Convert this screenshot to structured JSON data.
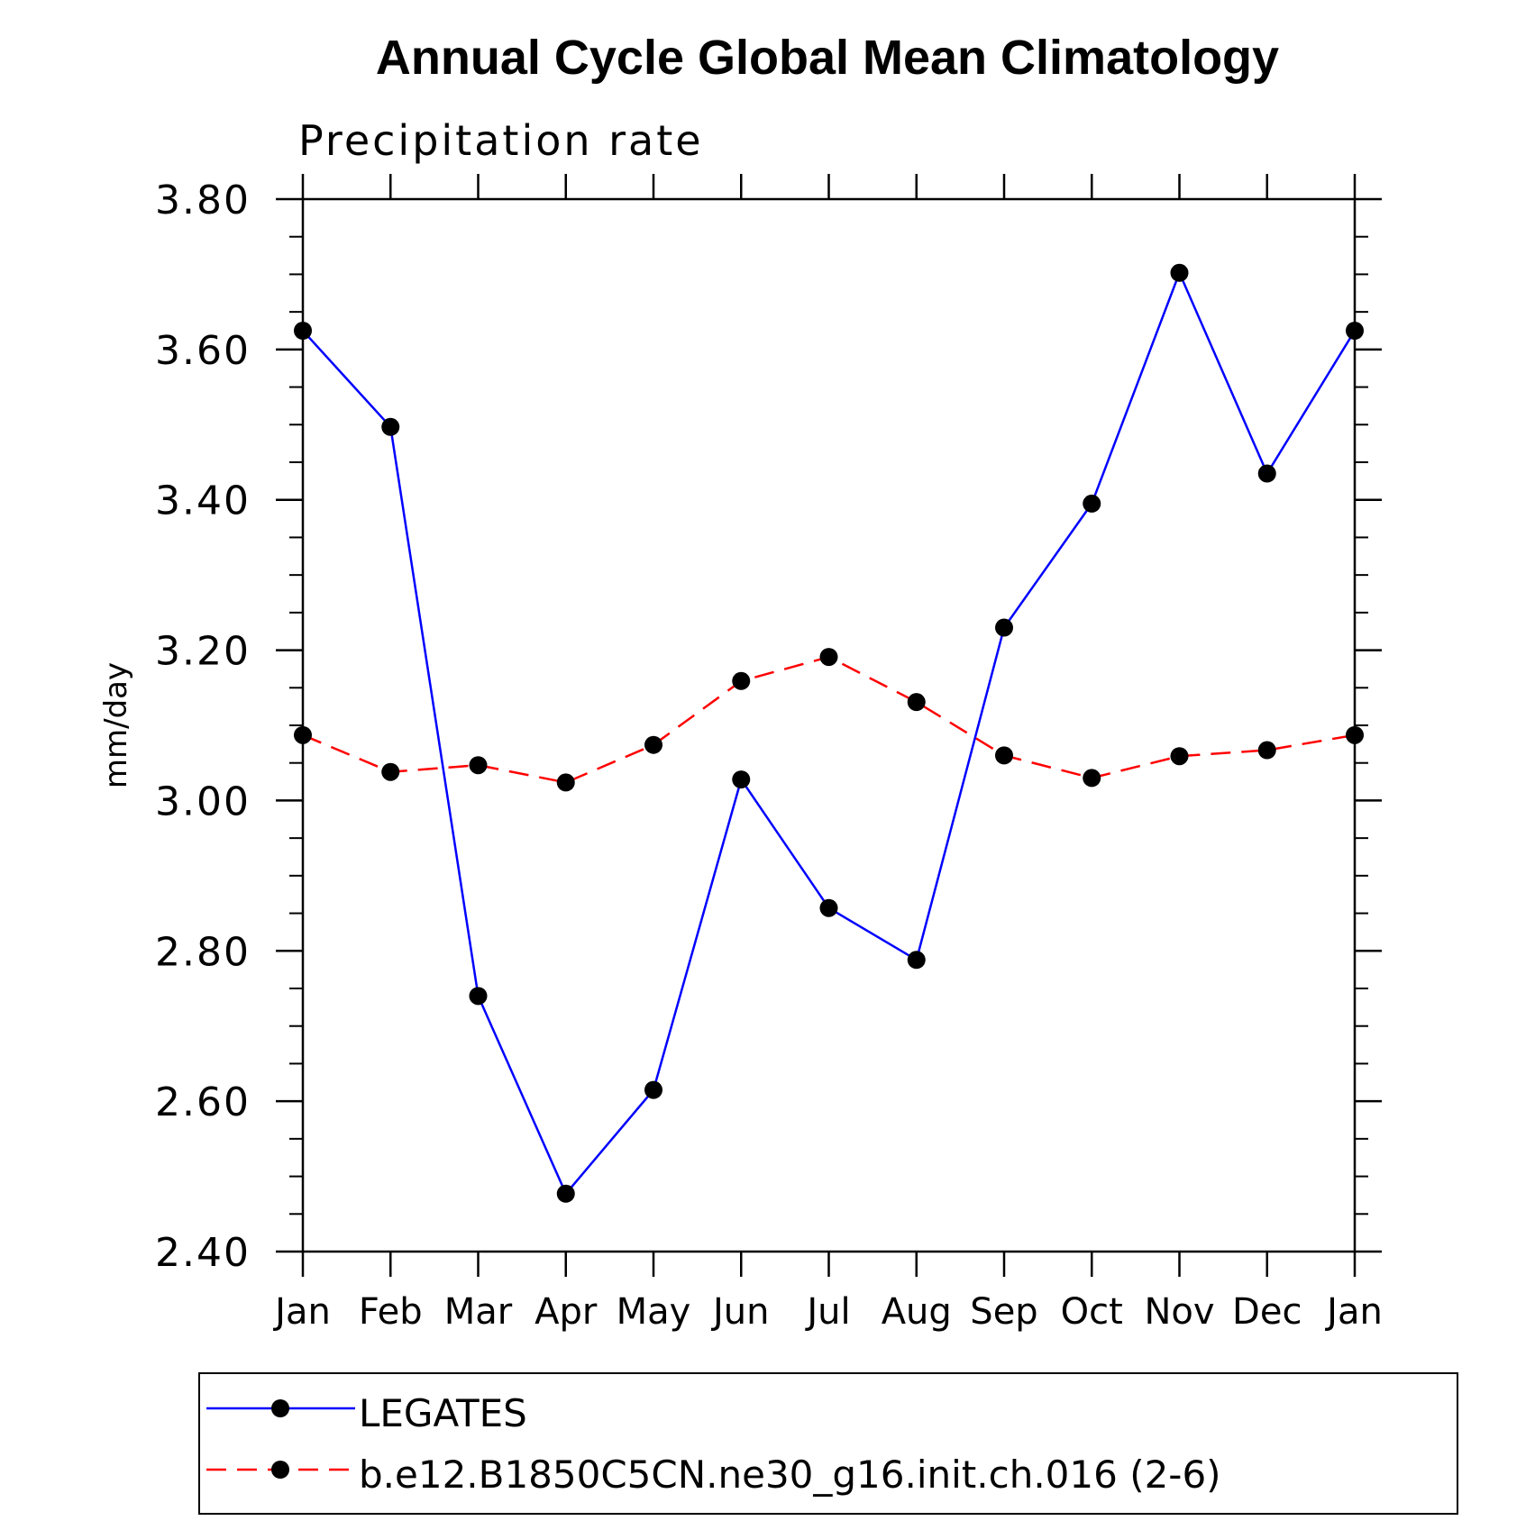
{
  "chart_data": {
    "type": "line",
    "title": "Annual Cycle Global Mean Climatology",
    "subtitle": "Precipitation rate",
    "xlabel": "",
    "ylabel": "mm/day",
    "categories": [
      "Jan",
      "Feb",
      "Mar",
      "Apr",
      "May",
      "Jun",
      "Jul",
      "Aug",
      "Sep",
      "Oct",
      "Nov",
      "Dec",
      "Jan"
    ],
    "ylim": [
      2.4,
      3.8
    ],
    "yticks": [
      "2.40",
      "2.60",
      "2.80",
      "3.00",
      "3.20",
      "3.40",
      "3.60",
      "3.80"
    ],
    "legend_placement": "bottom",
    "series": [
      {
        "name": "LEGATES",
        "color": "#0000ff",
        "style": "solid",
        "marker": "circle",
        "values": [
          3.625,
          3.497,
          2.74,
          2.477,
          2.615,
          3.028,
          2.857,
          2.788,
          3.23,
          3.395,
          3.702,
          3.435,
          3.625
        ]
      },
      {
        "name": "b.e12.B1850C5CN.ne30_g16.init.ch.016 (2-6)",
        "color": "#ff0000",
        "style": "dashed",
        "marker": "circle",
        "values": [
          3.087,
          3.038,
          3.047,
          3.024,
          3.074,
          3.159,
          3.191,
          3.131,
          3.06,
          3.03,
          3.059,
          3.067,
          3.087
        ]
      }
    ]
  }
}
